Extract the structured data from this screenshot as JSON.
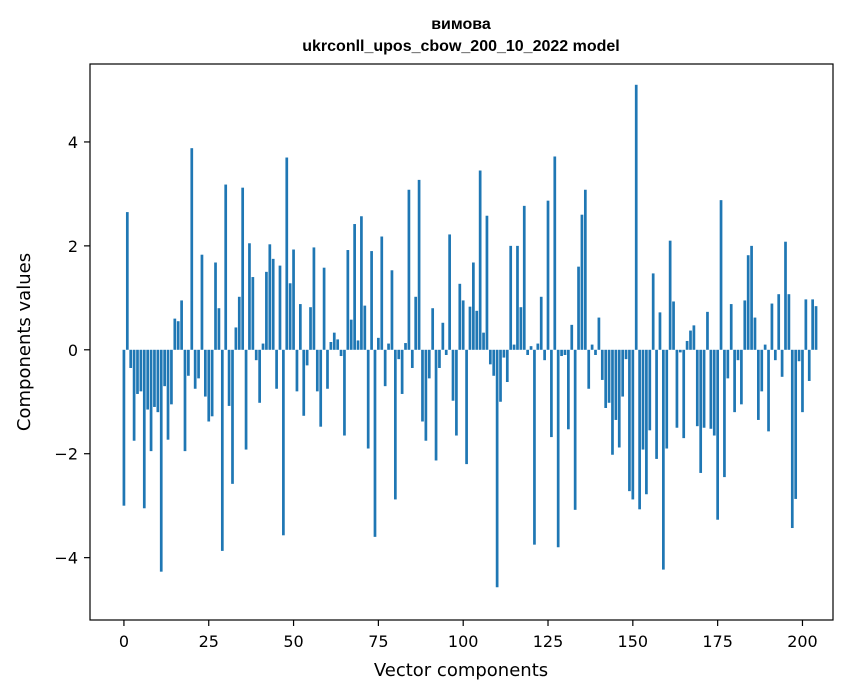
{
  "chart_data": {
    "type": "bar",
    "title_line1": "вимова",
    "title_line2": "ukrconll_upos_cbow_200_10_2022 model",
    "xlabel": "Vector components",
    "ylabel": "Components values",
    "xlim": [
      -10,
      209
    ],
    "ylim": [
      -5.2,
      5.5
    ],
    "xticks": [
      0,
      25,
      50,
      75,
      100,
      125,
      150,
      175,
      200
    ],
    "yticks": [
      -4,
      -2,
      0,
      2,
      4
    ],
    "xtick_labels": [
      "0",
      "25",
      "50",
      "75",
      "100",
      "125",
      "150",
      "175",
      "200"
    ],
    "ytick_labels": [
      "−4",
      "−2",
      "0",
      "2",
      "4"
    ],
    "grid": false,
    "bar_color": "#1f77b4",
    "values": [
      -3.0,
      2.65,
      -0.35,
      -1.75,
      -0.85,
      -0.8,
      -3.05,
      -1.15,
      -1.95,
      -1.1,
      -1.2,
      -4.27,
      -0.7,
      -1.73,
      -1.05,
      0.6,
      0.55,
      0.95,
      -1.95,
      -0.5,
      3.88,
      -0.75,
      -0.55,
      1.83,
      -0.9,
      -1.38,
      -1.28,
      1.68,
      0.8,
      -3.87,
      3.18,
      -1.08,
      -2.58,
      0.43,
      1.02,
      3.12,
      -1.92,
      2.05,
      1.4,
      -0.2,
      -1.02,
      0.12,
      1.5,
      2.03,
      1.75,
      -0.75,
      1.62,
      -3.57,
      3.7,
      1.28,
      1.93,
      -0.8,
      0.88,
      -1.27,
      -0.3,
      0.82,
      1.97,
      -0.8,
      -1.48,
      1.58,
      -0.75,
      0.15,
      0.33,
      0.2,
      -0.12,
      -1.65,
      1.92,
      0.58,
      2.42,
      0.18,
      2.57,
      0.85,
      -1.9,
      1.9,
      -3.6,
      0.23,
      2.18,
      -0.7,
      0.12,
      1.53,
      -2.88,
      -0.18,
      -0.85,
      0.13,
      3.08,
      -0.35,
      1.02,
      3.27,
      -1.38,
      -1.75,
      -0.55,
      0.8,
      -2.13,
      -0.35,
      0.52,
      -0.1,
      2.22,
      -0.98,
      -1.65,
      1.27,
      0.95,
      -2.2,
      0.83,
      1.68,
      0.75,
      3.45,
      0.33,
      2.58,
      -0.28,
      -0.5,
      -4.57,
      -1.0,
      -0.15,
      -0.62,
      2.0,
      0.1,
      2.0,
      0.82,
      2.77,
      -0.1,
      0.07,
      -3.75,
      0.12,
      1.02,
      -0.2,
      2.87,
      -1.68,
      3.72,
      -3.8,
      -0.12,
      -0.1,
      -1.53,
      0.48,
      -3.08,
      1.6,
      2.6,
      3.08,
      -0.75,
      0.1,
      -0.1,
      0.62,
      -0.58,
      -1.12,
      -1.02,
      -2.02,
      -1.35,
      -1.88,
      -0.9,
      -0.18,
      -2.72,
      -2.88,
      5.1,
      -3.07,
      -1.92,
      -2.78,
      -1.55,
      1.47,
      -2.1,
      0.72,
      -4.23,
      -1.9,
      2.1,
      0.93,
      -1.5,
      -0.05,
      -1.7,
      0.17,
      0.37,
      0.47,
      -1.47,
      -2.37,
      -1.5,
      0.73,
      -1.52,
      -1.65,
      -3.27,
      2.88,
      -2.45,
      -0.55,
      0.88,
      -1.2,
      -0.2,
      -1.05,
      0.95,
      1.82,
      2.0,
      0.62,
      -1.35,
      -0.8,
      0.1,
      -1.57,
      0.89,
      -0.2,
      1.07,
      -0.52,
      2.08,
      1.07,
      -3.43,
      -2.87,
      -0.22,
      -1.2,
      0.97,
      -0.6,
      0.97,
      0.84
    ]
  }
}
